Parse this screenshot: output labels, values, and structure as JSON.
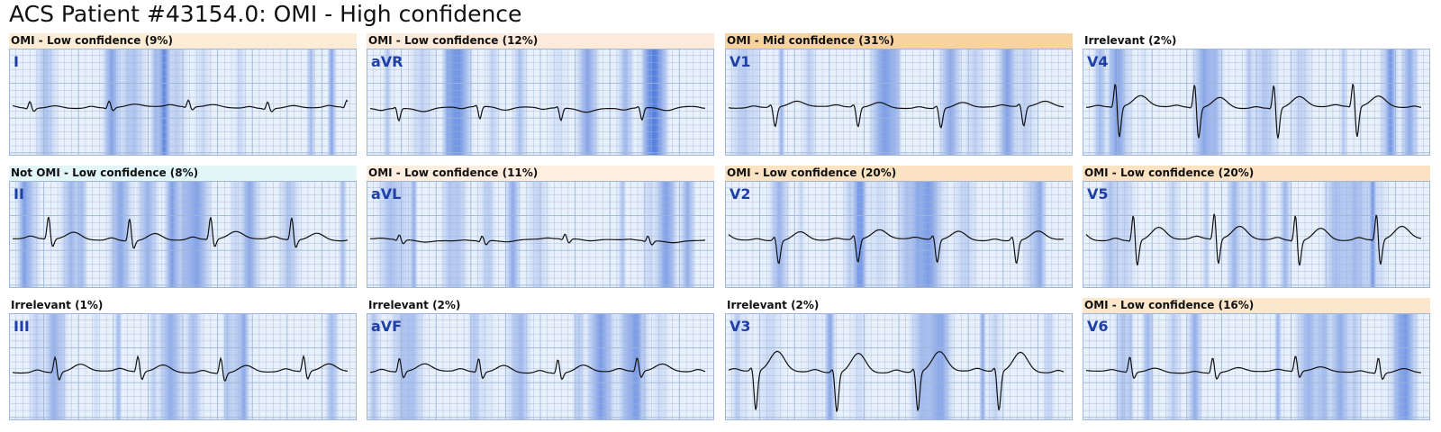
{
  "title": "ACS Patient #43154.0: OMI - High confidence",
  "panels": [
    {
      "header": "OMI - Low confidence (9%)",
      "lead": "I",
      "color": "#fdecd6"
    },
    {
      "header": "OMI - Low confidence (12%)",
      "lead": "aVR",
      "color": "#fdeada"
    },
    {
      "header": "OMI - Mid confidence (31%)",
      "lead": "V1",
      "color": "#f8d3a2"
    },
    {
      "header": "Irrelevant (2%)",
      "lead": "V4",
      "color": "#ffffff"
    },
    {
      "header": "Not OMI - Low confidence (8%)",
      "lead": "II",
      "color": "#e2f6f8"
    },
    {
      "header": "OMI - Low confidence (11%)",
      "lead": "aVL",
      "color": "#fdeedf"
    },
    {
      "header": "OMI - Low confidence (20%)",
      "lead": "V2",
      "color": "#fbe2c3"
    },
    {
      "header": "OMI - Low confidence (20%)",
      "lead": "V5",
      "color": "#fbe2c3"
    },
    {
      "header": "Irrelevant (1%)",
      "lead": "III",
      "color": "#ffffff"
    },
    {
      "header": "Irrelevant (2%)",
      "lead": "aVF",
      "color": "#ffffff"
    },
    {
      "header": "Irrelevant (2%)",
      "lead": "V3",
      "color": "#ffffff"
    },
    {
      "header": "OMI - Low confidence (16%)",
      "lead": "V6",
      "color": "#fce6cc"
    }
  ]
}
